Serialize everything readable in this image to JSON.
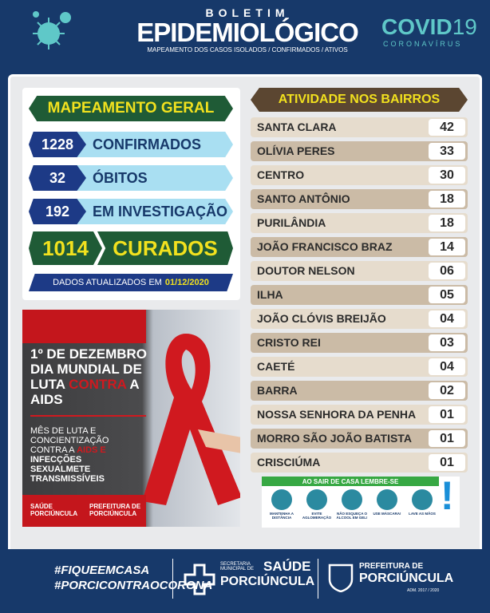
{
  "header": {
    "kicker": "BOLETIM",
    "title": "EPIDEMIOLÓGICO",
    "subtitle": "MAPEAMENTO DOS CASOS ISOLADOS / CONFIRMADOS / ATIVOS",
    "brand": "COVID",
    "brand_number": "19",
    "brand_sub": "CORONAVÍRUS"
  },
  "summary": {
    "title": "MAPEAMENTO GERAL",
    "rows": [
      {
        "value": "1228",
        "label": "CONFIRMADOS"
      },
      {
        "value": "32",
        "label": "ÓBITOS"
      },
      {
        "value": "192",
        "label": "EM INVESTIGAÇÃO"
      }
    ],
    "recovered": {
      "value": "1014",
      "label": "CURADOS"
    },
    "updated_label": "DADOS ATUALIZADOS EM",
    "updated_date": "01/12/2020"
  },
  "aids": {
    "headline_1": "1º DE DEZEMBRO DIA MUNDIAL DE LUTA",
    "headline_accent": "CONTRA",
    "headline_2": "A AIDS",
    "body_1": "MÊS DE LUTA E CONCIENTIZAÇÃO CONTRA A",
    "body_accent": "AIDS E",
    "body_2": "INFECÇÕES SEXUALMETE TRANSMISSÍVEIS",
    "logo_1": "SAÚDE PORCIÚNCULA",
    "logo_2": "PREFEITURA DE PORCIÚNCULA"
  },
  "neighborhoods": {
    "title": "ATIVIDADE NOS BAIRROS",
    "rows": [
      [
        "SANTA CLARA",
        "42"
      ],
      [
        "OLÍVIA PERES",
        "33"
      ],
      [
        "CENTRO",
        "30"
      ],
      [
        "SANTO ANTÔNIO",
        "18"
      ],
      [
        "PURILÂNDIA",
        "18"
      ],
      [
        "JOÃO FRANCISCO BRAZ",
        "14"
      ],
      [
        "DOUTOR NELSON",
        "06"
      ],
      [
        "ILHA",
        "05"
      ],
      [
        "JOÃO CLÓVIS BREIJÃO",
        "04"
      ],
      [
        "CRISTO REI",
        "03"
      ],
      [
        "CAETÉ",
        "04"
      ],
      [
        "BARRA",
        "02"
      ],
      [
        "NOSSA SENHORA DA PENHA",
        "01"
      ],
      [
        "MORRO SÃO JOÃO BATISTA",
        "01"
      ],
      [
        "CRISCIÚMA",
        "01"
      ]
    ]
  },
  "reminder": {
    "title": "AO SAIR DE CASA LEMBRE-SE",
    "items": [
      "MANTENHA A DISTÂNCIA",
      "EVITE AGLOMERAÇÃO",
      "NÃO ESQUEÇA O ÁLCOOL EM GEL!",
      "USE MÁSCARA!",
      "LAVE AS MÃOS"
    ]
  },
  "footer": {
    "hashtag_1": "#FIQUEEMCASA",
    "hashtag_2": "#PORCICONTRAOCORONA",
    "secretaria_small": "SECRETARIA MUNICIPAL DE",
    "secretaria_big": "SAÚDE",
    "secretaria_city": "PORCIÚNCULA",
    "prefeitura_small": "PREFEITURA DE",
    "prefeitura_big": "PORCIÚNCULA",
    "term": "ADM. 2017 / 2020"
  }
}
